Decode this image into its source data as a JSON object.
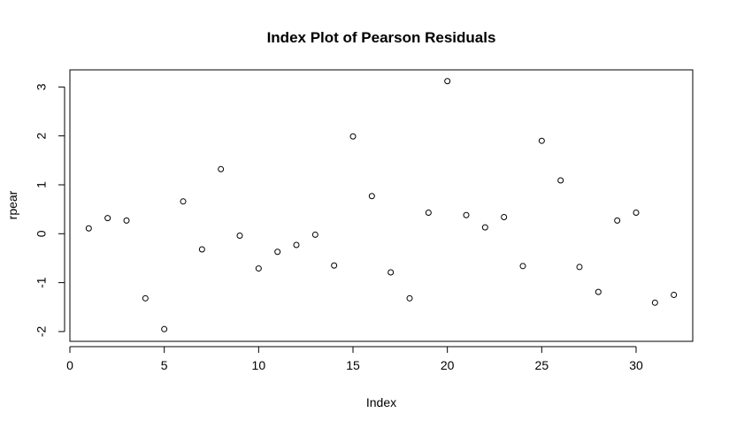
{
  "chart_data": {
    "type": "scatter",
    "title": "Index Plot of Pearson Residuals",
    "xlabel": "Index",
    "ylabel": "rpear",
    "xlim": [
      0,
      33
    ],
    "ylim": [
      -2.2,
      3.35
    ],
    "xticks": [
      0,
      5,
      10,
      15,
      20,
      25,
      30
    ],
    "yticks": [
      -2,
      -1,
      0,
      1,
      2,
      3
    ],
    "grid": false,
    "legend": "none",
    "marker": "open-circle",
    "x": [
      1,
      2,
      3,
      4,
      5,
      6,
      7,
      8,
      9,
      10,
      11,
      12,
      13,
      14,
      15,
      16,
      17,
      18,
      19,
      20,
      21,
      22,
      23,
      24,
      25,
      26,
      27,
      28,
      29,
      30,
      31,
      32
    ],
    "y": [
      0.11,
      0.32,
      0.27,
      -1.32,
      -1.95,
      0.66,
      -0.32,
      1.32,
      -0.04,
      -0.71,
      -0.37,
      -0.23,
      -0.02,
      -0.65,
      1.99,
      0.77,
      -0.79,
      -1.32,
      0.43,
      3.12,
      0.38,
      0.13,
      0.34,
      -0.66,
      1.9,
      1.09,
      -0.68,
      -1.19,
      0.27,
      0.43,
      -1.41,
      -1.25
    ]
  }
}
